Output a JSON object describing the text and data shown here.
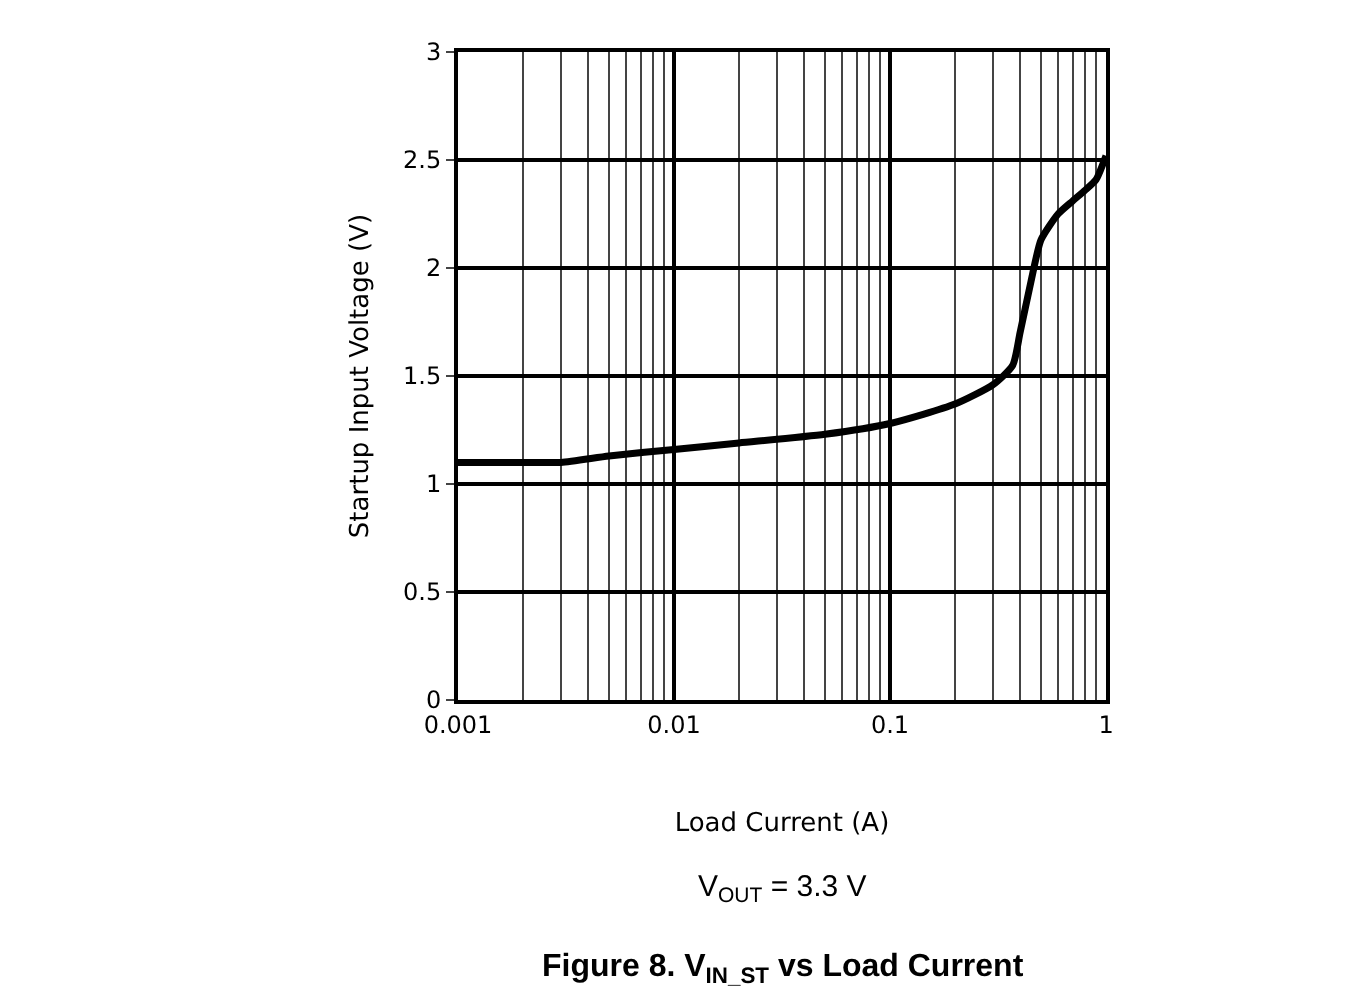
{
  "chart_data": {
    "type": "line",
    "title": "Figure 8. V$_{IN_ST}$ vs Load Current",
    "xlabel": "Load Current (A)",
    "ylabel": "Startup Input Voltage (V)",
    "annotations": [
      "V$_{OUT}$ = 3.3 V"
    ],
    "log": "x",
    "x": [
      0.001,
      0.002,
      0.003,
      0.005,
      0.01,
      0.02,
      0.05,
      0.1,
      0.2,
      0.3,
      0.37,
      0.4,
      0.45,
      0.5,
      0.6,
      0.7,
      0.8,
      0.9,
      1.0
    ],
    "series": [
      {
        "color": "#000000",
        "values": [
          1.1,
          1.1,
          1.1,
          1.13,
          1.16,
          1.19,
          1.23,
          1.28,
          1.37,
          1.46,
          1.55,
          1.7,
          1.94,
          2.13,
          2.25,
          2.31,
          2.36,
          2.41,
          2.52
        ]
      }
    ],
    "xlim": [
      0.001,
      1
    ],
    "xticks": [
      0.001,
      0.01,
      0.1,
      1
    ],
    "ylim": [
      0,
      3
    ],
    "yticks": [
      0,
      0.5,
      1,
      1.5,
      2,
      2.5,
      3
    ],
    "grid": true,
    "marker": "none",
    "line_style": "solid"
  }
}
